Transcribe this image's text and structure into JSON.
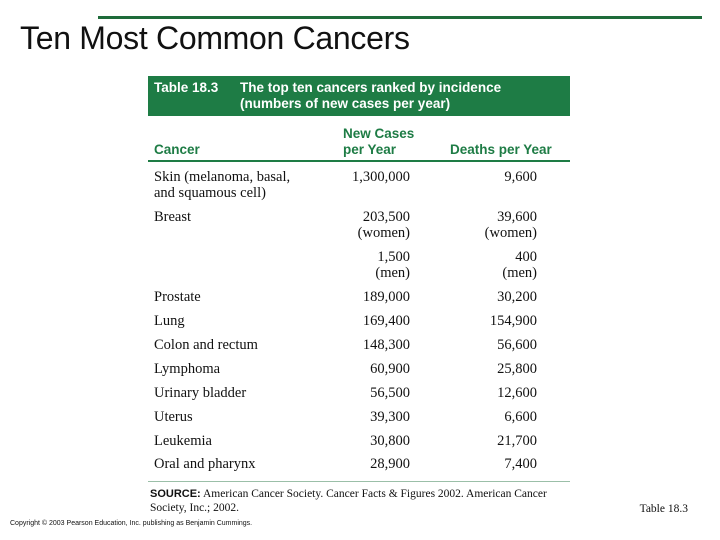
{
  "slide": {
    "title": "Ten Most Common Cancers",
    "table_ref": "Table 18.3",
    "copyright": "Copyright © 2003 Pearson Education, Inc. publishing as Benjamin Cummings."
  },
  "table": {
    "number": "Table 18.3",
    "caption_line1": "The top ten cancers ranked by incidence",
    "caption_line2": "(numbers of new cases per year)",
    "headers": {
      "cancer": "Cancer",
      "new_cases_line1": "New Cases",
      "new_cases_line2": "per Year",
      "deaths": "Deaths per Year"
    },
    "rows": [
      {
        "cancer": "Skin (melanoma, basal,",
        "new": "1,300,000",
        "deaths": "9,600"
      },
      {
        "cancer": "and squamous cell)",
        "new": "",
        "deaths": ""
      },
      {
        "cancer": "Breast",
        "new": "203,500",
        "deaths": "39,600"
      },
      {
        "cancer": "",
        "new": "(women)",
        "deaths": "(women)"
      },
      {
        "cancer": "",
        "new": "1,500",
        "deaths": "400"
      },
      {
        "cancer": "",
        "new": "(men)",
        "deaths": "(men)"
      },
      {
        "cancer": "Prostate",
        "new": "189,000",
        "deaths": "30,200"
      },
      {
        "cancer": "Lung",
        "new": "169,400",
        "deaths": "154,900"
      },
      {
        "cancer": "Colon and rectum",
        "new": "148,300",
        "deaths": "56,600"
      },
      {
        "cancer": "Lymphoma",
        "new": "60,900",
        "deaths": "25,800"
      },
      {
        "cancer": "Urinary bladder",
        "new": "56,500",
        "deaths": "12,600"
      },
      {
        "cancer": "Uterus",
        "new": "39,300",
        "deaths": "6,600"
      },
      {
        "cancer": "Leukemia",
        "new": "30,800",
        "deaths": "21,700"
      },
      {
        "cancer": "Oral and pharynx",
        "new": "28,900",
        "deaths": "7,400"
      }
    ],
    "source_label": "SOURCE:",
    "source_text": "American Cancer Society. Cancer Facts & Figures 2002. American Cancer Society, Inc.; 2002."
  }
}
